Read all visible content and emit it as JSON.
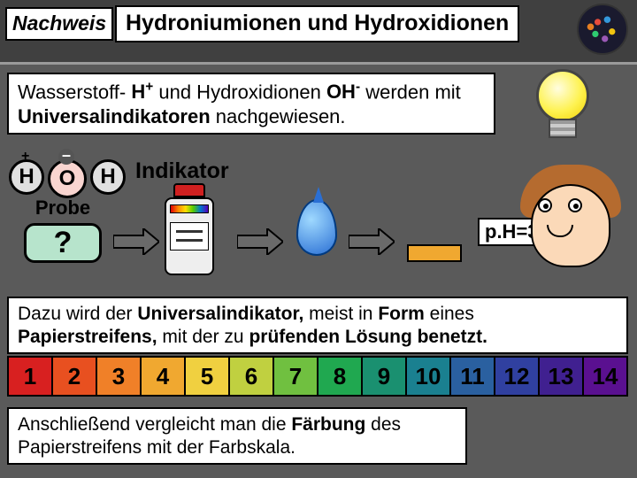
{
  "header": {
    "tag": "Nachweis",
    "title": "Hydroniumionen und Hydroxidionen"
  },
  "intro_html": "Wasserstoff- <b>H<sup>+</sup></b> und Hydroxidionen <b>OH<sup>-</sup></b> werden mit <b>Universalindikatoren</b> nachgewiesen.",
  "ions": {
    "h1": "H",
    "o": "O",
    "h2": "H",
    "pos": "+",
    "neg": "–"
  },
  "labels": {
    "indikator": "Indikator",
    "probe": "Probe",
    "question": "?",
    "ph": "p.H=3"
  },
  "method_html": "Dazu wird der <b>Universalindikator,</b> meist in <b>Form</b> eines <b>Papierstreifens,</b> mit der zu <b>prüfenden Lösung benetzt.</b>",
  "phscale": {
    "values": [
      "1",
      "2",
      "3",
      "4",
      "5",
      "6",
      "7",
      "8",
      "9",
      "10",
      "11",
      "12",
      "13",
      "14"
    ],
    "colors": [
      "#d82020",
      "#e85020",
      "#f08028",
      "#f0a830",
      "#f0d040",
      "#c0d040",
      "#70c040",
      "#20a850",
      "#1a9070",
      "#1a8090",
      "#2a60a0",
      "#3040a0",
      "#402090",
      "#5a1090"
    ],
    "text_color": "#000"
  },
  "conclusion_html": "Anschließend vergleicht man die <b>Färbung</b> des Papierstreifens mit der Farbskala.",
  "arrow_color": "#6a6a6a"
}
